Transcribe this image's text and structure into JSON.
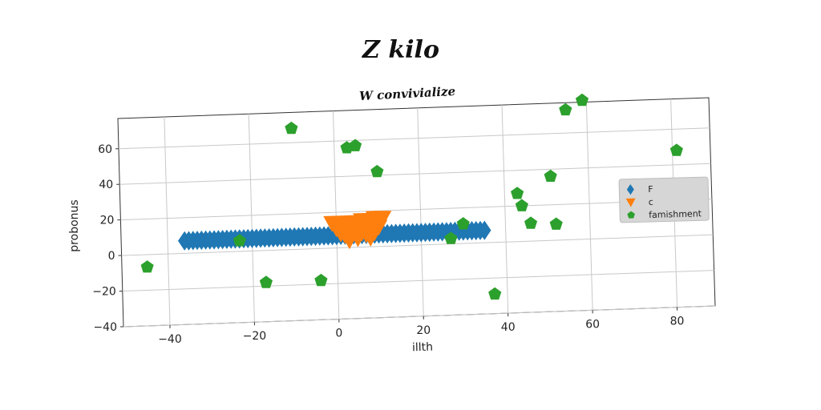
{
  "chart_data": {
    "type": "scatter",
    "title": "Z kilo",
    "subtitle": "W convivialize",
    "xlabel": "illth",
    "ylabel": "probonus",
    "xlim": [
      -51,
      89
    ],
    "ylim": [
      -40,
      77
    ],
    "xticks": [
      -40,
      -20,
      0,
      20,
      40,
      60,
      80
    ],
    "yticks": [
      -40,
      -20,
      0,
      20,
      40,
      60
    ],
    "grid": true,
    "legend_position": "right",
    "series": [
      {
        "name": "F",
        "marker": "diamond",
        "color": "#1f77b4",
        "points": [
          [
            -36,
            7
          ],
          [
            -35,
            7
          ],
          [
            -34,
            7
          ],
          [
            -33,
            7
          ],
          [
            -32,
            7
          ],
          [
            -31,
            7
          ],
          [
            -30,
            7
          ],
          [
            -29,
            7
          ],
          [
            -28,
            7
          ],
          [
            -27,
            7
          ],
          [
            -26,
            7
          ],
          [
            -25,
            7
          ],
          [
            -24,
            7
          ],
          [
            -23,
            7
          ],
          [
            -22,
            7
          ],
          [
            -21,
            7
          ],
          [
            -20,
            7
          ],
          [
            -19,
            7
          ],
          [
            -18,
            7
          ],
          [
            -17,
            7
          ],
          [
            -16,
            7
          ],
          [
            -15,
            7
          ],
          [
            -14,
            7
          ],
          [
            -13,
            7
          ],
          [
            -12,
            7
          ],
          [
            -11,
            7
          ],
          [
            -10,
            7
          ],
          [
            -9,
            7
          ],
          [
            -8,
            7
          ],
          [
            -7,
            7
          ],
          [
            -6,
            7
          ],
          [
            -5,
            7
          ],
          [
            -4,
            7
          ],
          [
            -3,
            7
          ],
          [
            -2,
            7
          ],
          [
            -1,
            7
          ],
          [
            0,
            7
          ],
          [
            1,
            7
          ],
          [
            2,
            7
          ],
          [
            3,
            7
          ],
          [
            4,
            7
          ],
          [
            5,
            7
          ],
          [
            6,
            7
          ],
          [
            7,
            7
          ],
          [
            8,
            7
          ],
          [
            9,
            7
          ],
          [
            10,
            7
          ],
          [
            11,
            7
          ],
          [
            12,
            7
          ],
          [
            13,
            7
          ],
          [
            14,
            7
          ],
          [
            15,
            7
          ],
          [
            16,
            7
          ],
          [
            17,
            7
          ],
          [
            18,
            7
          ],
          [
            19,
            7
          ],
          [
            20,
            7
          ],
          [
            21,
            7
          ],
          [
            22,
            7
          ],
          [
            23,
            7
          ],
          [
            24,
            7
          ],
          [
            25,
            7
          ],
          [
            26,
            7
          ],
          [
            27,
            7
          ],
          [
            28,
            7
          ],
          [
            29,
            7
          ],
          [
            30,
            7
          ],
          [
            31,
            7
          ],
          [
            32,
            7
          ],
          [
            33,
            7
          ],
          [
            34,
            7
          ],
          [
            35,
            7
          ]
        ]
      },
      {
        "name": "c",
        "marker": "triangle-down",
        "color": "#ff7f0e",
        "points": [
          [
            -1,
            14
          ],
          [
            0,
            14
          ],
          [
            1,
            14
          ],
          [
            2,
            14
          ],
          [
            3,
            14
          ],
          [
            4,
            14
          ],
          [
            5,
            14
          ],
          [
            6,
            15
          ],
          [
            7,
            15
          ],
          [
            8,
            15
          ],
          [
            9,
            16
          ],
          [
            10,
            16
          ],
          [
            11,
            16
          ],
          [
            0,
            11
          ],
          [
            2,
            11
          ],
          [
            4,
            11
          ],
          [
            6,
            11
          ],
          [
            8,
            11
          ],
          [
            10,
            11
          ],
          [
            1,
            8
          ],
          [
            2,
            7
          ],
          [
            4,
            8
          ],
          [
            6,
            8
          ],
          [
            7,
            7
          ],
          [
            9,
            8
          ],
          [
            3,
            4
          ],
          [
            5,
            5
          ],
          [
            8,
            5
          ]
        ]
      },
      {
        "name": "famishment",
        "marker": "pentagon",
        "color": "#2ca02c",
        "points": [
          [
            -45,
            -7
          ],
          [
            -23,
            6
          ],
          [
            -17,
            -18
          ],
          [
            -10,
            68
          ],
          [
            -4,
            -18
          ],
          [
            3,
            56
          ],
          [
            5,
            57
          ],
          [
            10,
            42
          ],
          [
            27,
            3
          ],
          [
            30,
            11
          ],
          [
            37,
            -29
          ],
          [
            43,
            27
          ],
          [
            44,
            20
          ],
          [
            46,
            10
          ],
          [
            51,
            36
          ],
          [
            52,
            9
          ],
          [
            55,
            73
          ],
          [
            59,
            78
          ],
          [
            81,
            48
          ]
        ]
      }
    ]
  }
}
